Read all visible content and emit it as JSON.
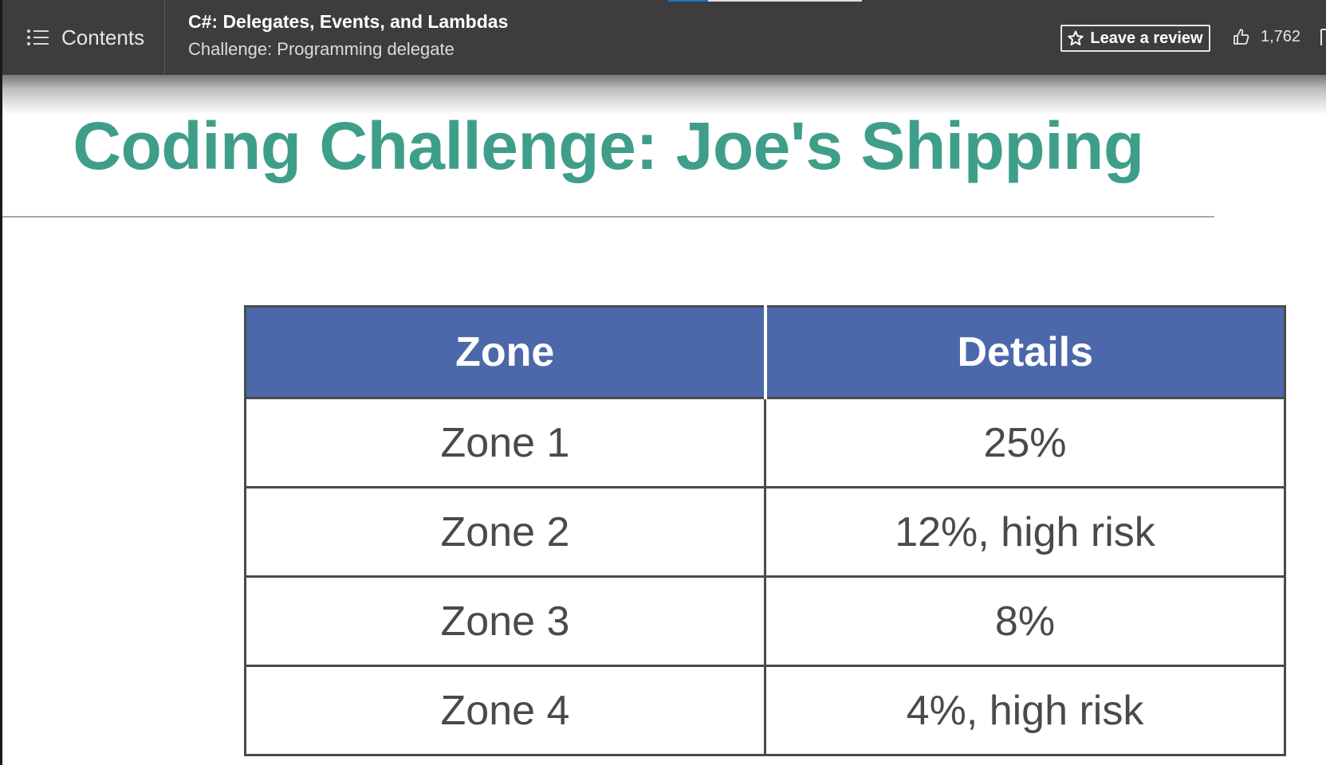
{
  "header": {
    "contents_label": "Contents",
    "course_title": "C#: Delegates, Events, and Lambdas",
    "lesson_title": "Challenge: Programming delegate",
    "review_label": "Leave a review",
    "like_count": "1,762",
    "icons": {
      "menu": "list-icon",
      "review": "star-icon",
      "like": "thumbs-up-icon"
    },
    "progress_colors": [
      "#1e72c2",
      "#e0e0e0"
    ]
  },
  "slide": {
    "title": "Coding Challenge: Joe's Shipping",
    "title_color": "#3f9e89",
    "table": {
      "header_color": "#4d67ab",
      "columns": [
        "Zone",
        "Details"
      ],
      "rows": [
        {
          "zone": "Zone 1",
          "details": "25%"
        },
        {
          "zone": "Zone 2",
          "details": "12%, high risk"
        },
        {
          "zone": "Zone 3",
          "details": "8%"
        },
        {
          "zone": "Zone 4",
          "details": "4%, high risk"
        }
      ]
    }
  }
}
